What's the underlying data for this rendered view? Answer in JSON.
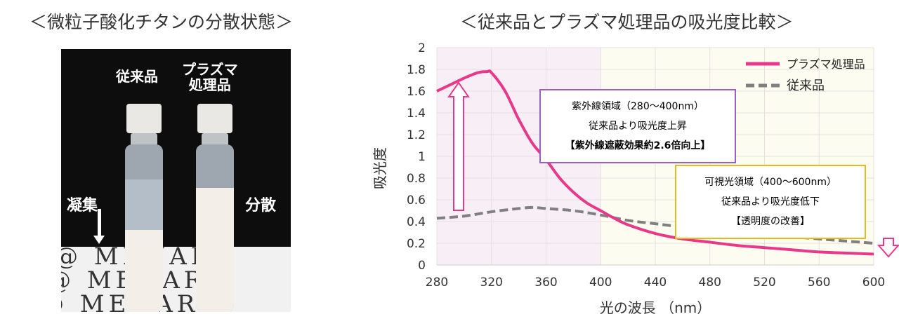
{
  "left_panel": {
    "title": "＜微粒子酸化チタンの分散状態＞",
    "label_conventional": "従来品",
    "label_plasma_line1": "プラズマ",
    "label_plasma_line2": "処理品",
    "label_aggregation": "凝集",
    "label_dispersion": "分散",
    "background_brand": "MENARD"
  },
  "chart_data": {
    "type": "line",
    "title": "＜従来品とプラズマ処理品の吸光度比較＞",
    "xlabel": "光の波長 （nm）",
    "ylabel": "吸光度",
    "xlim": [
      280,
      600
    ],
    "ylim": [
      0,
      2
    ],
    "xticks": [
      "280",
      "320",
      "360",
      "400",
      "440",
      "480",
      "520",
      "560",
      "600"
    ],
    "yticks": [
      "0",
      "0.2",
      "0.4",
      "0.6",
      "0.8",
      "1",
      "1.2",
      "1.4",
      "1.6",
      "1.8",
      "2"
    ],
    "grid": true,
    "legend_position": "top-right",
    "series": [
      {
        "name": "プラズマ処理品",
        "color": "#e8388a",
        "style": "solid",
        "x": [
          280,
          290,
          300,
          310,
          317,
          320,
          330,
          340,
          350,
          360,
          370,
          380,
          390,
          400,
          410,
          420,
          440,
          460,
          480,
          500,
          520,
          540,
          560,
          580,
          600
        ],
        "y": [
          1.6,
          1.66,
          1.72,
          1.77,
          1.78,
          1.77,
          1.6,
          1.34,
          1.12,
          0.97,
          0.8,
          0.67,
          0.57,
          0.5,
          0.43,
          0.37,
          0.29,
          0.24,
          0.21,
          0.18,
          0.16,
          0.14,
          0.12,
          0.11,
          0.1
        ]
      },
      {
        "name": "従来品",
        "color": "#808080",
        "style": "dashed",
        "x": [
          280,
          300,
          320,
          340,
          350,
          360,
          380,
          400,
          420,
          440,
          460,
          480,
          500,
          520,
          540,
          560,
          580,
          600
        ],
        "y": [
          0.43,
          0.45,
          0.49,
          0.52,
          0.53,
          0.52,
          0.5,
          0.46,
          0.41,
          0.38,
          0.35,
          0.33,
          0.3,
          0.28,
          0.26,
          0.24,
          0.22,
          0.2
        ]
      }
    ],
    "regions": [
      {
        "from": 280,
        "to": 400,
        "color": "#f7eef6"
      },
      {
        "from": 400,
        "to": 600,
        "color": "#fdfcf0"
      }
    ],
    "annotations": {
      "uv_box": {
        "lines": [
          "紫外線領域（280～400nm）",
          "従来品より吸光度上昇",
          "【紫外線遮蔽効果約2.6倍向上】"
        ],
        "border_color": "#9b5fc0"
      },
      "visible_box": {
        "lines": [
          "可視光領域（400～600nm）",
          "従来品より吸光度低下",
          "【透明度の改善】"
        ],
        "border_color": "#e8b820"
      },
      "up_arrow_color": "#e8388a",
      "down_arrow_color": "#e8388a"
    }
  }
}
